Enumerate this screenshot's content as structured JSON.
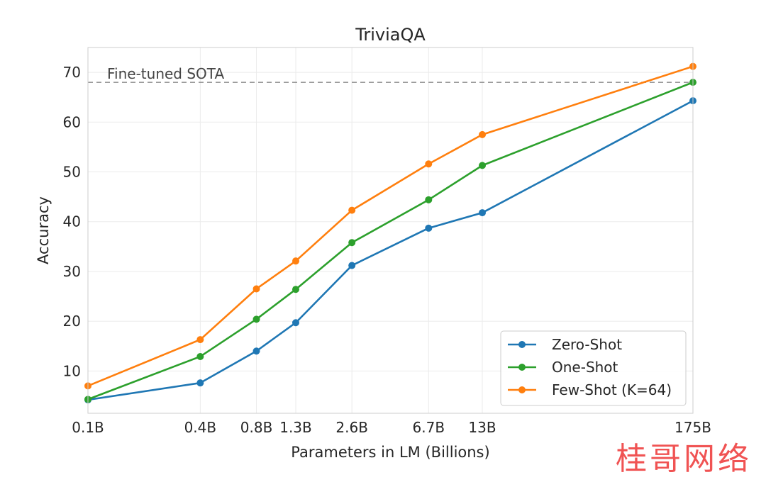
{
  "chart_data": {
    "type": "line",
    "title": "TriviaQA",
    "xlabel": "Parameters in LM (Billions)",
    "ylabel": "Accuracy",
    "x_scale": "log",
    "x": [
      0.1,
      0.4,
      0.8,
      1.3,
      2.6,
      6.7,
      13,
      175
    ],
    "x_tick_labels": [
      "0.1B",
      "0.4B",
      "0.8B",
      "1.3B",
      "2.6B",
      "6.7B",
      "13B",
      "175B"
    ],
    "y_ticks": [
      10,
      20,
      30,
      40,
      50,
      60,
      70
    ],
    "ylim": [
      1.5,
      75
    ],
    "grid": true,
    "legend_position": "bottom-right",
    "series": [
      {
        "name": "Zero-Shot",
        "color": "#1f77b4",
        "values": [
          4.2,
          7.6,
          14.0,
          19.7,
          31.2,
          38.7,
          41.8,
          64.3
        ]
      },
      {
        "name": "One-Shot",
        "color": "#2ca02c",
        "values": [
          4.3,
          12.9,
          20.4,
          26.4,
          35.8,
          44.4,
          51.3,
          68.0
        ]
      },
      {
        "name": "Few-Shot (K=64)",
        "color": "#ff7f0e",
        "values": [
          7.0,
          16.3,
          26.5,
          32.1,
          42.3,
          51.6,
          57.5,
          71.2
        ]
      }
    ],
    "reference_line": {
      "label": "Fine-tuned SOTA",
      "value": 68.0,
      "color": "#999999",
      "style": "dashed"
    }
  },
  "watermark": "桂哥网络"
}
